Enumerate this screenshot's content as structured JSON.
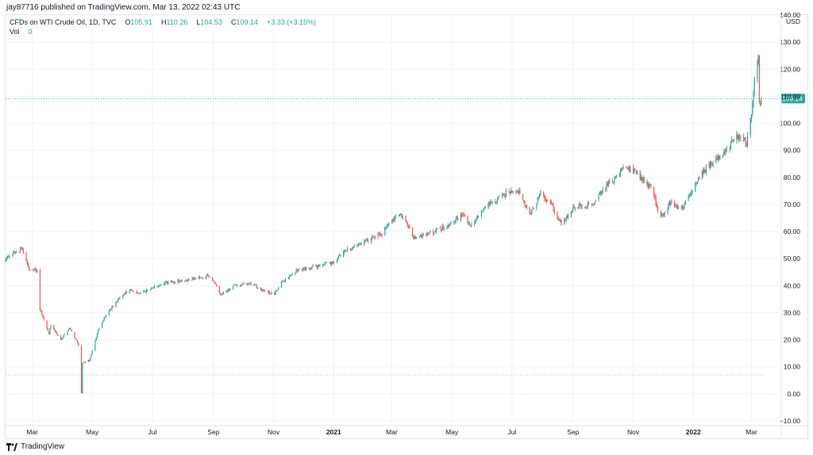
{
  "header": {
    "publish_text": "jay87716 published on TradingView.com, Mar 13, 2022 02:43 UTC"
  },
  "legend": {
    "symbol": "CFDs on WTI Crude Oil, 1D, TVC",
    "o_label": "O",
    "o_value": "105.91",
    "h_label": "H",
    "h_value": "110.26",
    "l_label": "L",
    "l_value": "104.53",
    "c_label": "C",
    "c_value": "109.14",
    "change": "+3.33 (+3.15%)",
    "vol_label": "Vol",
    "vol_value": "0"
  },
  "footer": {
    "brand": "TradingView"
  },
  "colors": {
    "up": "#26a69a",
    "down": "#ef5350",
    "grid": "#f0f3fa",
    "axis_text": "#131722",
    "price_tag_bg": "#26a69a"
  },
  "chart_data": {
    "type": "candlestick",
    "currency": "USD",
    "ylim": [
      -10,
      140
    ],
    "y_ticks": [
      -10,
      0,
      10,
      20,
      30,
      40,
      50,
      60,
      70,
      80,
      90,
      100,
      110,
      120,
      130,
      140
    ],
    "y_tick_labels": [
      "−10.00",
      "0.00",
      "10.00",
      "20.00",
      "30.00",
      "40.00",
      "50.00",
      "60.00",
      "70.00",
      "80.00",
      "90.00",
      "100.00",
      "110.00",
      "120.00",
      "130.00",
      "140.00"
    ],
    "x_tick_labels": [
      {
        "label": "Mar",
        "date": "2020-03-01",
        "bold": false
      },
      {
        "label": "May",
        "date": "2020-05-01",
        "bold": false
      },
      {
        "label": "Jul",
        "date": "2020-07-01",
        "bold": false
      },
      {
        "label": "Sep",
        "date": "2020-09-01",
        "bold": false
      },
      {
        "label": "Nov",
        "date": "2020-11-01",
        "bold": false
      },
      {
        "label": "2021",
        "date": "2021-01-01",
        "bold": true
      },
      {
        "label": "Mar",
        "date": "2021-03-01",
        "bold": false
      },
      {
        "label": "May",
        "date": "2021-05-01",
        "bold": false
      },
      {
        "label": "Jul",
        "date": "2021-07-01",
        "bold": false
      },
      {
        "label": "Sep",
        "date": "2021-09-01",
        "bold": false
      },
      {
        "label": "Nov",
        "date": "2021-11-01",
        "bold": false
      },
      {
        "label": "2022",
        "date": "2022-01-01",
        "bold": true
      },
      {
        "label": "Mar",
        "date": "2022-03-01",
        "bold": false
      }
    ],
    "x_start": "2020-02-03",
    "x_end": "2022-03-28",
    "last_price": 109.14,
    "last_price_label": "109.14",
    "reference_line": 7.0,
    "close_path": [
      [
        "2020-02-03",
        50.1
      ],
      [
        "2020-02-12",
        52.3
      ],
      [
        "2020-02-20",
        53.5
      ],
      [
        "2020-02-28",
        45.3
      ],
      [
        "2020-03-06",
        45.9
      ],
      [
        "2020-03-09",
        31.1
      ],
      [
        "2020-03-18",
        22.5
      ],
      [
        "2020-03-20",
        25.0
      ],
      [
        "2020-03-30",
        20.1
      ],
      [
        "2020-04-08",
        24.5
      ],
      [
        "2020-04-17",
        18.1
      ],
      [
        "2020-04-20",
        0.0
      ],
      [
        "2020-04-21",
        11.5
      ],
      [
        "2020-04-28",
        12.3
      ],
      [
        "2020-05-08",
        24.7
      ],
      [
        "2020-05-15",
        29.4
      ],
      [
        "2020-05-29",
        35.5
      ],
      [
        "2020-06-08",
        38.2
      ],
      [
        "2020-06-15",
        37.1
      ],
      [
        "2020-06-26",
        38.5
      ],
      [
        "2020-07-15",
        41.2
      ],
      [
        "2020-08-05",
        42.2
      ],
      [
        "2020-08-26",
        43.4
      ],
      [
        "2020-09-02",
        41.5
      ],
      [
        "2020-09-08",
        36.8
      ],
      [
        "2020-09-22",
        39.9
      ],
      [
        "2020-10-09",
        40.6
      ],
      [
        "2020-10-28",
        37.4
      ],
      [
        "2020-11-02",
        36.8
      ],
      [
        "2020-11-10",
        41.4
      ],
      [
        "2020-11-25",
        45.7
      ],
      [
        "2020-12-10",
        46.8
      ],
      [
        "2020-12-31",
        48.5
      ],
      [
        "2021-01-13",
        52.9
      ],
      [
        "2021-02-05",
        56.8
      ],
      [
        "2021-02-19",
        59.2
      ],
      [
        "2021-03-05",
        66.1
      ],
      [
        "2021-03-12",
        65.6
      ],
      [
        "2021-03-23",
        57.8
      ],
      [
        "2021-04-06",
        59.3
      ],
      [
        "2021-04-22",
        61.4
      ],
      [
        "2021-05-12",
        66.1
      ],
      [
        "2021-05-20",
        62.0
      ],
      [
        "2021-06-03",
        68.8
      ],
      [
        "2021-06-25",
        74.1
      ],
      [
        "2021-07-06",
        75.5
      ],
      [
        "2021-07-19",
        66.4
      ],
      [
        "2021-07-30",
        73.9
      ],
      [
        "2021-08-11",
        69.2
      ],
      [
        "2021-08-20",
        62.3
      ],
      [
        "2021-09-01",
        68.6
      ],
      [
        "2021-09-20",
        70.3
      ],
      [
        "2021-10-06",
        77.4
      ],
      [
        "2021-10-25",
        84.0
      ],
      [
        "2021-11-05",
        81.3
      ],
      [
        "2021-11-19",
        75.9
      ],
      [
        "2021-11-26",
        68.2
      ],
      [
        "2021-12-01",
        65.6
      ],
      [
        "2021-12-09",
        70.9
      ],
      [
        "2021-12-20",
        68.2
      ],
      [
        "2021-12-31",
        75.2
      ],
      [
        "2022-01-14",
        83.8
      ],
      [
        "2022-01-31",
        88.2
      ],
      [
        "2022-02-14",
        95.5
      ],
      [
        "2022-02-24",
        92.8
      ],
      [
        "2022-03-01",
        103.4
      ],
      [
        "2022-03-04",
        115.7
      ],
      [
        "2022-03-08",
        123.7
      ],
      [
        "2022-03-09",
        108.7
      ],
      [
        "2022-03-10",
        106.0
      ],
      [
        "2022-03-11",
        109.14
      ]
    ]
  }
}
